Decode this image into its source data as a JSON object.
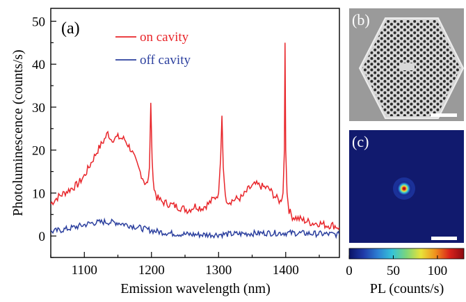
{
  "chart_data": [
    {
      "type": "line",
      "panel_label": "(a)",
      "title": "",
      "xlabel": "Emission wavelength (nm)",
      "ylabel": "Photoluminescence (counts/s)",
      "xlim": [
        1050,
        1480
      ],
      "ylim": [
        -5,
        53
      ],
      "x_ticks": [
        1100,
        1200,
        1300,
        1400
      ],
      "y_ticks": [
        0,
        10,
        20,
        30,
        40,
        50
      ],
      "grid": false,
      "legend_position": "top-center",
      "series": [
        {
          "name": "on cavity",
          "color": "#e8252a",
          "x": [
            1050,
            1060,
            1070,
            1080,
            1090,
            1100,
            1110,
            1120,
            1130,
            1135,
            1140,
            1150,
            1160,
            1170,
            1180,
            1190,
            1194,
            1197,
            1199,
            1201,
            1204,
            1208,
            1215,
            1225,
            1235,
            1245,
            1255,
            1265,
            1275,
            1285,
            1295,
            1300,
            1303,
            1305,
            1307,
            1310,
            1315,
            1325,
            1335,
            1345,
            1355,
            1365,
            1375,
            1385,
            1392,
            1396,
            1398,
            1399,
            1400,
            1402,
            1405,
            1410,
            1420,
            1430,
            1440,
            1450,
            1460,
            1470,
            1480
          ],
          "y": [
            7.5,
            9,
            10,
            11,
            12,
            14,
            17,
            20,
            22.5,
            24,
            22.5,
            23,
            22.5,
            20,
            16,
            12.5,
            12,
            16,
            31,
            17,
            11,
            9,
            8,
            7.5,
            7,
            6.5,
            6,
            7,
            6.5,
            7.5,
            9,
            10,
            18,
            28,
            16,
            9,
            8,
            8.5,
            9,
            11,
            12,
            11.5,
            11,
            9,
            8,
            10,
            20,
            45,
            20,
            10,
            6,
            4.5,
            4,
            3.5,
            3,
            3,
            2.5,
            2.5,
            2
          ]
        },
        {
          "name": "off cavity",
          "color": "#2b3f9e",
          "x": [
            1050,
            1070,
            1090,
            1110,
            1130,
            1150,
            1170,
            1190,
            1210,
            1230,
            1250,
            1270,
            1290,
            1310,
            1330,
            1350,
            1370,
            1390,
            1410,
            1430,
            1450,
            1470,
            1480
          ],
          "y": [
            1,
            1.5,
            2.2,
            3,
            3.3,
            3.1,
            2.4,
            1.6,
            1,
            0.6,
            0.4,
            0.3,
            0.3,
            0.4,
            0.5,
            0.6,
            0.7,
            0.7,
            0.7,
            0.6,
            0.5,
            0.4,
            0.3
          ]
        }
      ]
    },
    {
      "type": "image",
      "panel_label": "(b)",
      "description_kind": "sem-micrograph"
    },
    {
      "type": "heatmap",
      "panel_label": "(c)",
      "colorbar_label": "PL (counts/s)",
      "colorbar_range": [
        0,
        130
      ],
      "colorbar_ticks": [
        0,
        50,
        100
      ],
      "peak_value": 130,
      "colorscale": [
        "#0a1466",
        "#1f3aa8",
        "#2d7fd3",
        "#35c3d8",
        "#7dd67a",
        "#e8e33a",
        "#f0921e",
        "#d9231b",
        "#8c0a12"
      ]
    }
  ]
}
